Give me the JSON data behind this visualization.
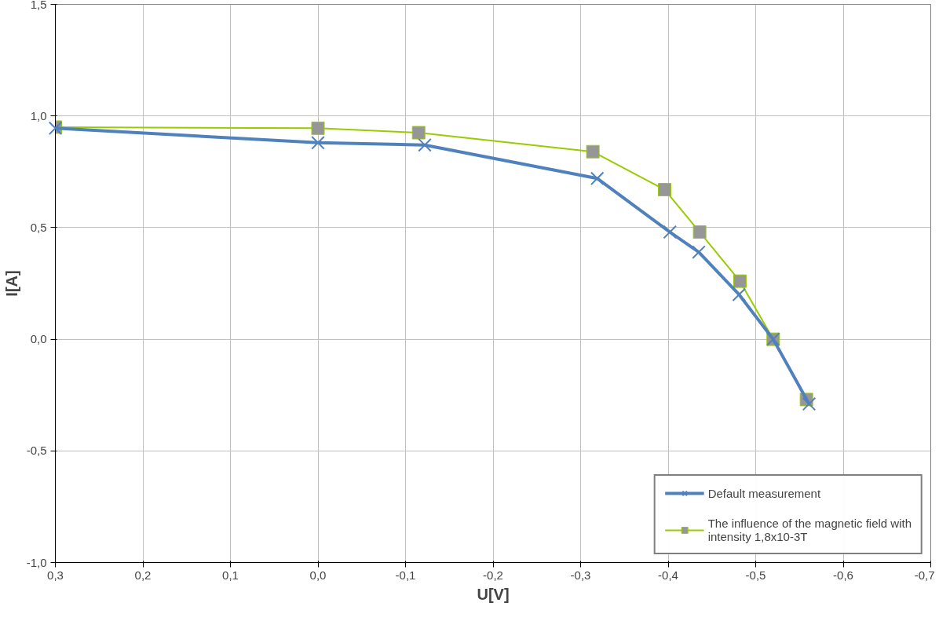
{
  "chart_data": {
    "type": "line",
    "xlabel": "U[V]",
    "ylabel": "I[A]",
    "xlim": [
      0.3,
      -0.7
    ],
    "ylim": [
      -1.0,
      1.5
    ],
    "xticks": [
      {
        "value": 0.3,
        "label": "0,3"
      },
      {
        "value": 0.2,
        "label": "0,2"
      },
      {
        "value": 0.1,
        "label": "0,1"
      },
      {
        "value": 0.0,
        "label": "0,0"
      },
      {
        "value": -0.1,
        "label": "-0,1"
      },
      {
        "value": -0.2,
        "label": "-0,2"
      },
      {
        "value": -0.3,
        "label": "-0,3"
      },
      {
        "value": -0.4,
        "label": "-0,4"
      },
      {
        "value": -0.5,
        "label": "-0,5"
      },
      {
        "value": -0.6,
        "label": "-0,6"
      },
      {
        "value": -0.7,
        "label": "-0,7"
      }
    ],
    "yticks": [
      {
        "value": -1.0,
        "label": "-1,0"
      },
      {
        "value": -0.5,
        "label": "-0,5"
      },
      {
        "value": 0.0,
        "label": "0,0"
      },
      {
        "value": 0.5,
        "label": "0,5"
      },
      {
        "value": 1.0,
        "label": "1,0"
      },
      {
        "value": 1.5,
        "label": "1,5"
      }
    ],
    "grid": true,
    "legend": "bottom right",
    "series": [
      {
        "name": "Default measurement",
        "color": "#4f81bd",
        "marker": "cross",
        "x": [
          0.3,
          0.0,
          -0.122,
          -0.319,
          -0.402,
          -0.435,
          -0.481,
          -0.52,
          -0.561
        ],
        "values": [
          0.945,
          0.88,
          0.87,
          0.72,
          0.48,
          0.39,
          0.2,
          0.0,
          -0.29
        ]
      },
      {
        "name": "The influence of the magnetic field with intensity 1,8x10-3T",
        "color": "#99cc00",
        "marker": "square",
        "x": [
          0.3,
          0.0,
          -0.115,
          -0.314,
          -0.396,
          -0.436,
          -0.482,
          -0.52,
          -0.558
        ],
        "values": [
          0.95,
          0.945,
          0.925,
          0.84,
          0.67,
          0.48,
          0.26,
          0.0,
          -0.27
        ]
      }
    ]
  }
}
